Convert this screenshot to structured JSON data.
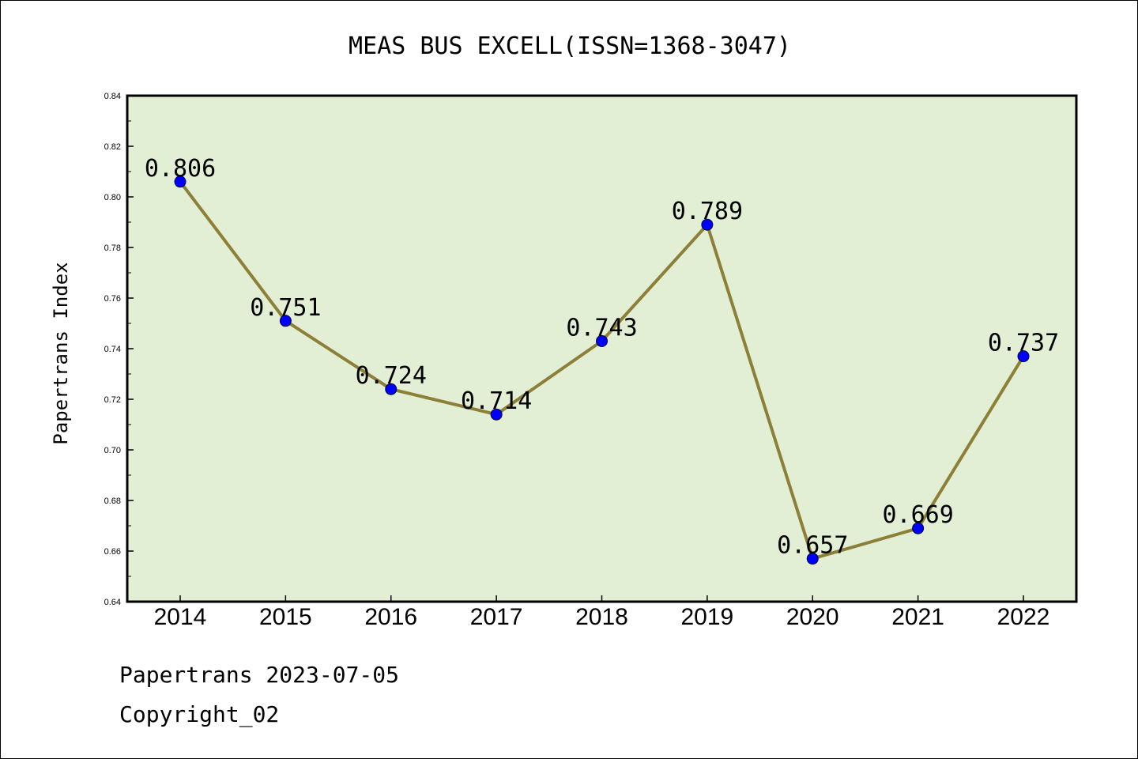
{
  "chart_data": {
    "type": "line",
    "title": "MEAS BUS EXCELL(ISSN=1368-3047)",
    "ylabel": "Papertrans Index",
    "xlabel": "",
    "x": [
      "2014",
      "2015",
      "2016",
      "2017",
      "2018",
      "2019",
      "2020",
      "2021",
      "2022"
    ],
    "series": [
      {
        "values": [
          0.806,
          0.751,
          0.724,
          0.714,
          0.743,
          0.789,
          0.657,
          0.669,
          0.737
        ],
        "labels": [
          "0.806",
          "0.751",
          "0.724",
          "0.714",
          "0.743",
          "0.789",
          "0.657",
          "0.669",
          "0.737"
        ]
      }
    ],
    "ylim": [
      0.64,
      0.84
    ],
    "yticks": [
      "0.64",
      "0.66",
      "0.68",
      "0.70",
      "0.72",
      "0.74",
      "0.76",
      "0.78",
      "0.80",
      "0.82",
      "0.84"
    ],
    "grid": false,
    "legend": "none",
    "colors": {
      "line": "#8c7f38",
      "marker": "#0000ff",
      "plot_background": "#e2efd5",
      "frame": "#000000"
    }
  },
  "footer": {
    "line1": "Papertrans 2023-07-05",
    "line2": "Copyright_02"
  }
}
